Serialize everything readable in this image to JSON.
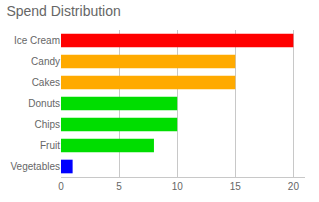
{
  "chart_data": {
    "type": "bar",
    "title": "Spend Distribution",
    "categories": [
      "Vegetables",
      "Fruit",
      "Chips",
      "Donuts",
      "Cakes",
      "Candy",
      "Ice Cream"
    ],
    "values": [
      1,
      8,
      10,
      10,
      15,
      15,
      20
    ],
    "colors": [
      "#0000ff",
      "#00dd00",
      "#00dd00",
      "#00dd00",
      "#ffaa00",
      "#ffaa00",
      "#ff0000"
    ],
    "orientation": "horizontal",
    "xlim": [
      0,
      21
    ],
    "xticks": [
      0,
      5,
      10,
      15,
      20
    ],
    "grid": true
  }
}
